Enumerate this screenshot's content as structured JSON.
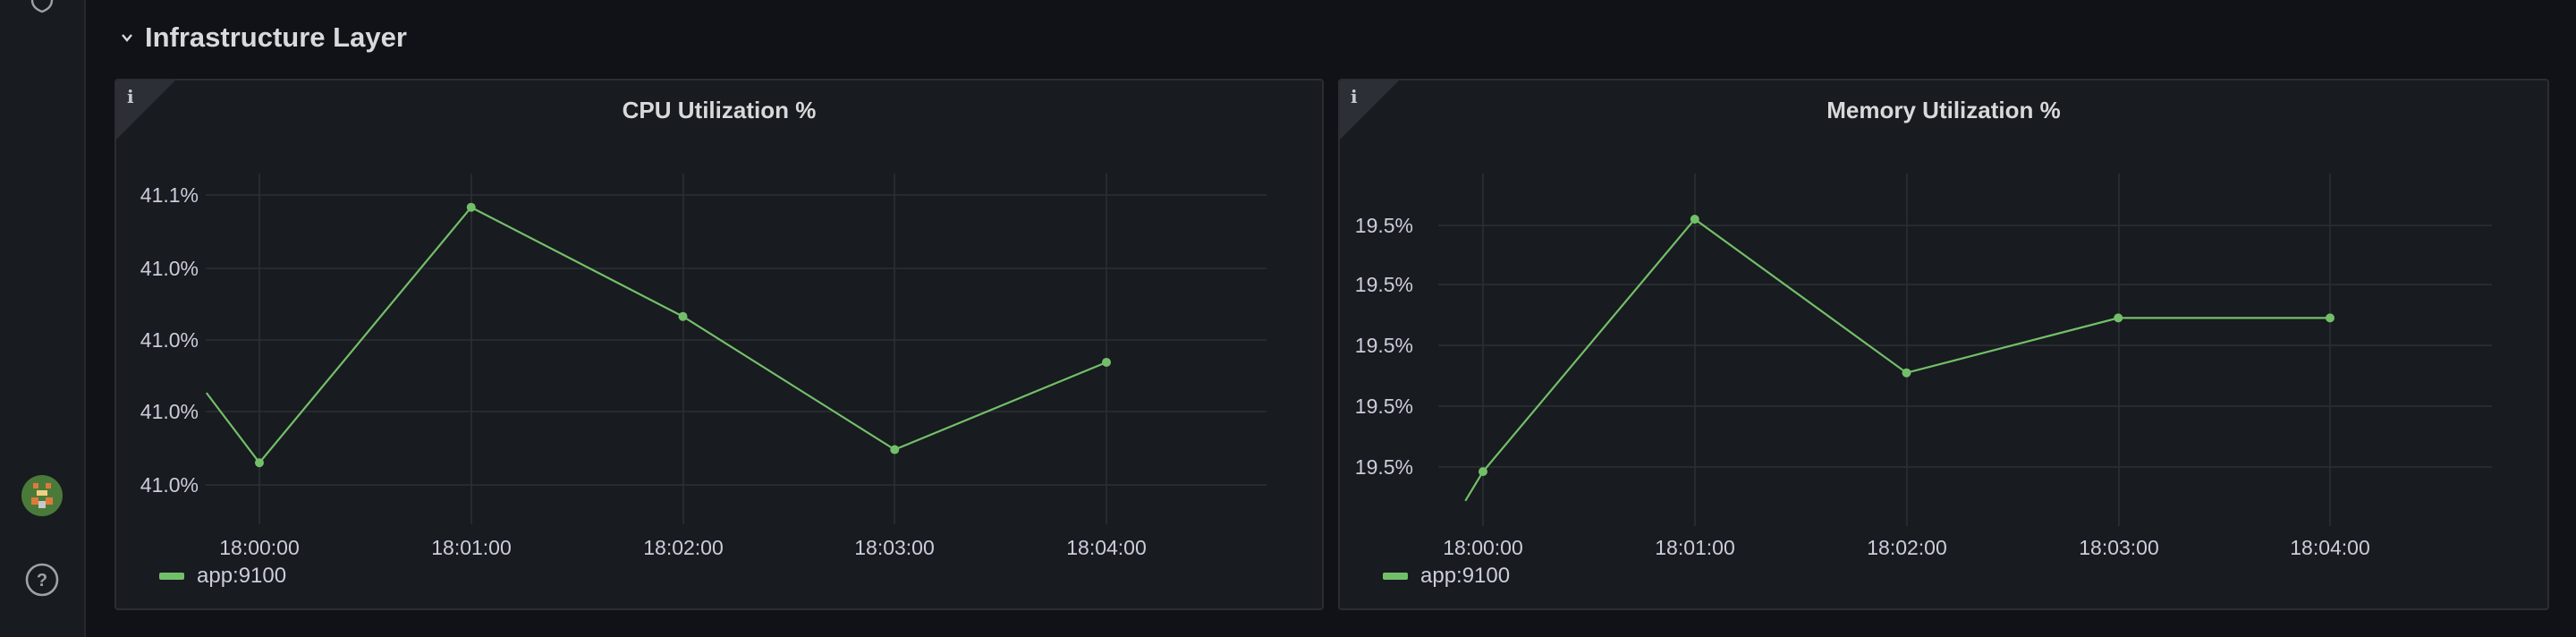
{
  "row": {
    "title": "Infrastructure Layer"
  },
  "legend_label": "app:9100",
  "line_color": "#73bf69",
  "info_glyph": "i",
  "sidebar": {
    "icons": [
      "shield-icon",
      "user-avatar",
      "help-icon"
    ],
    "help_glyph": "?"
  },
  "panels": {
    "cpu": {
      "title": "CPU Utilization %"
    },
    "mem": {
      "title": "Memory Utilization %"
    }
  },
  "chart_data": [
    {
      "type": "line",
      "title": "CPU Utilization %",
      "x_ticks": [
        "18:00:00",
        "18:01:00",
        "18:02:00",
        "18:03:00",
        "18:04:00"
      ],
      "y_ticks": [
        "41.1%",
        "41.0%",
        "41.0%",
        "41.0%",
        "41.0%"
      ],
      "grid": true,
      "legend_placement": "bottom-left",
      "series": [
        {
          "name": "app:9100",
          "points": [
            {
              "x": "17:59:45",
              "y": 41.032,
              "marker": false
            },
            {
              "x": "18:00:00",
              "y": 41.0,
              "marker": true
            },
            {
              "x": "18:01:00",
              "y": 41.117,
              "marker": true
            },
            {
              "x": "18:02:00",
              "y": 41.067,
              "marker": true
            },
            {
              "x": "18:03:00",
              "y": 41.006,
              "marker": true
            },
            {
              "x": "18:04:00",
              "y": 41.046,
              "marker": true
            }
          ]
        }
      ],
      "ylim": [
        40.98,
        41.13
      ]
    },
    {
      "type": "line",
      "title": "Memory Utilization %",
      "x_ticks": [
        "18:00:00",
        "18:01:00",
        "18:02:00",
        "18:03:00",
        "18:04:00"
      ],
      "y_ticks": [
        "19.5%",
        "19.5%",
        "19.5%",
        "19.5%",
        "19.5%"
      ],
      "grid": true,
      "legend_placement": "bottom-left",
      "series": [
        {
          "name": "app:9100",
          "points": [
            {
              "x": "17:59:55",
              "y": 19.482,
              "marker": false
            },
            {
              "x": "18:00:00",
              "y": 19.49,
              "marker": true
            },
            {
              "x": "18:01:00",
              "y": 19.559,
              "marker": true
            },
            {
              "x": "18:02:00",
              "y": 19.517,
              "marker": true
            },
            {
              "x": "18:03:00",
              "y": 19.532,
              "marker": true
            },
            {
              "x": "18:04:00",
              "y": 19.532,
              "marker": true
            }
          ]
        }
      ],
      "ylim": [
        19.48,
        19.57
      ]
    }
  ]
}
